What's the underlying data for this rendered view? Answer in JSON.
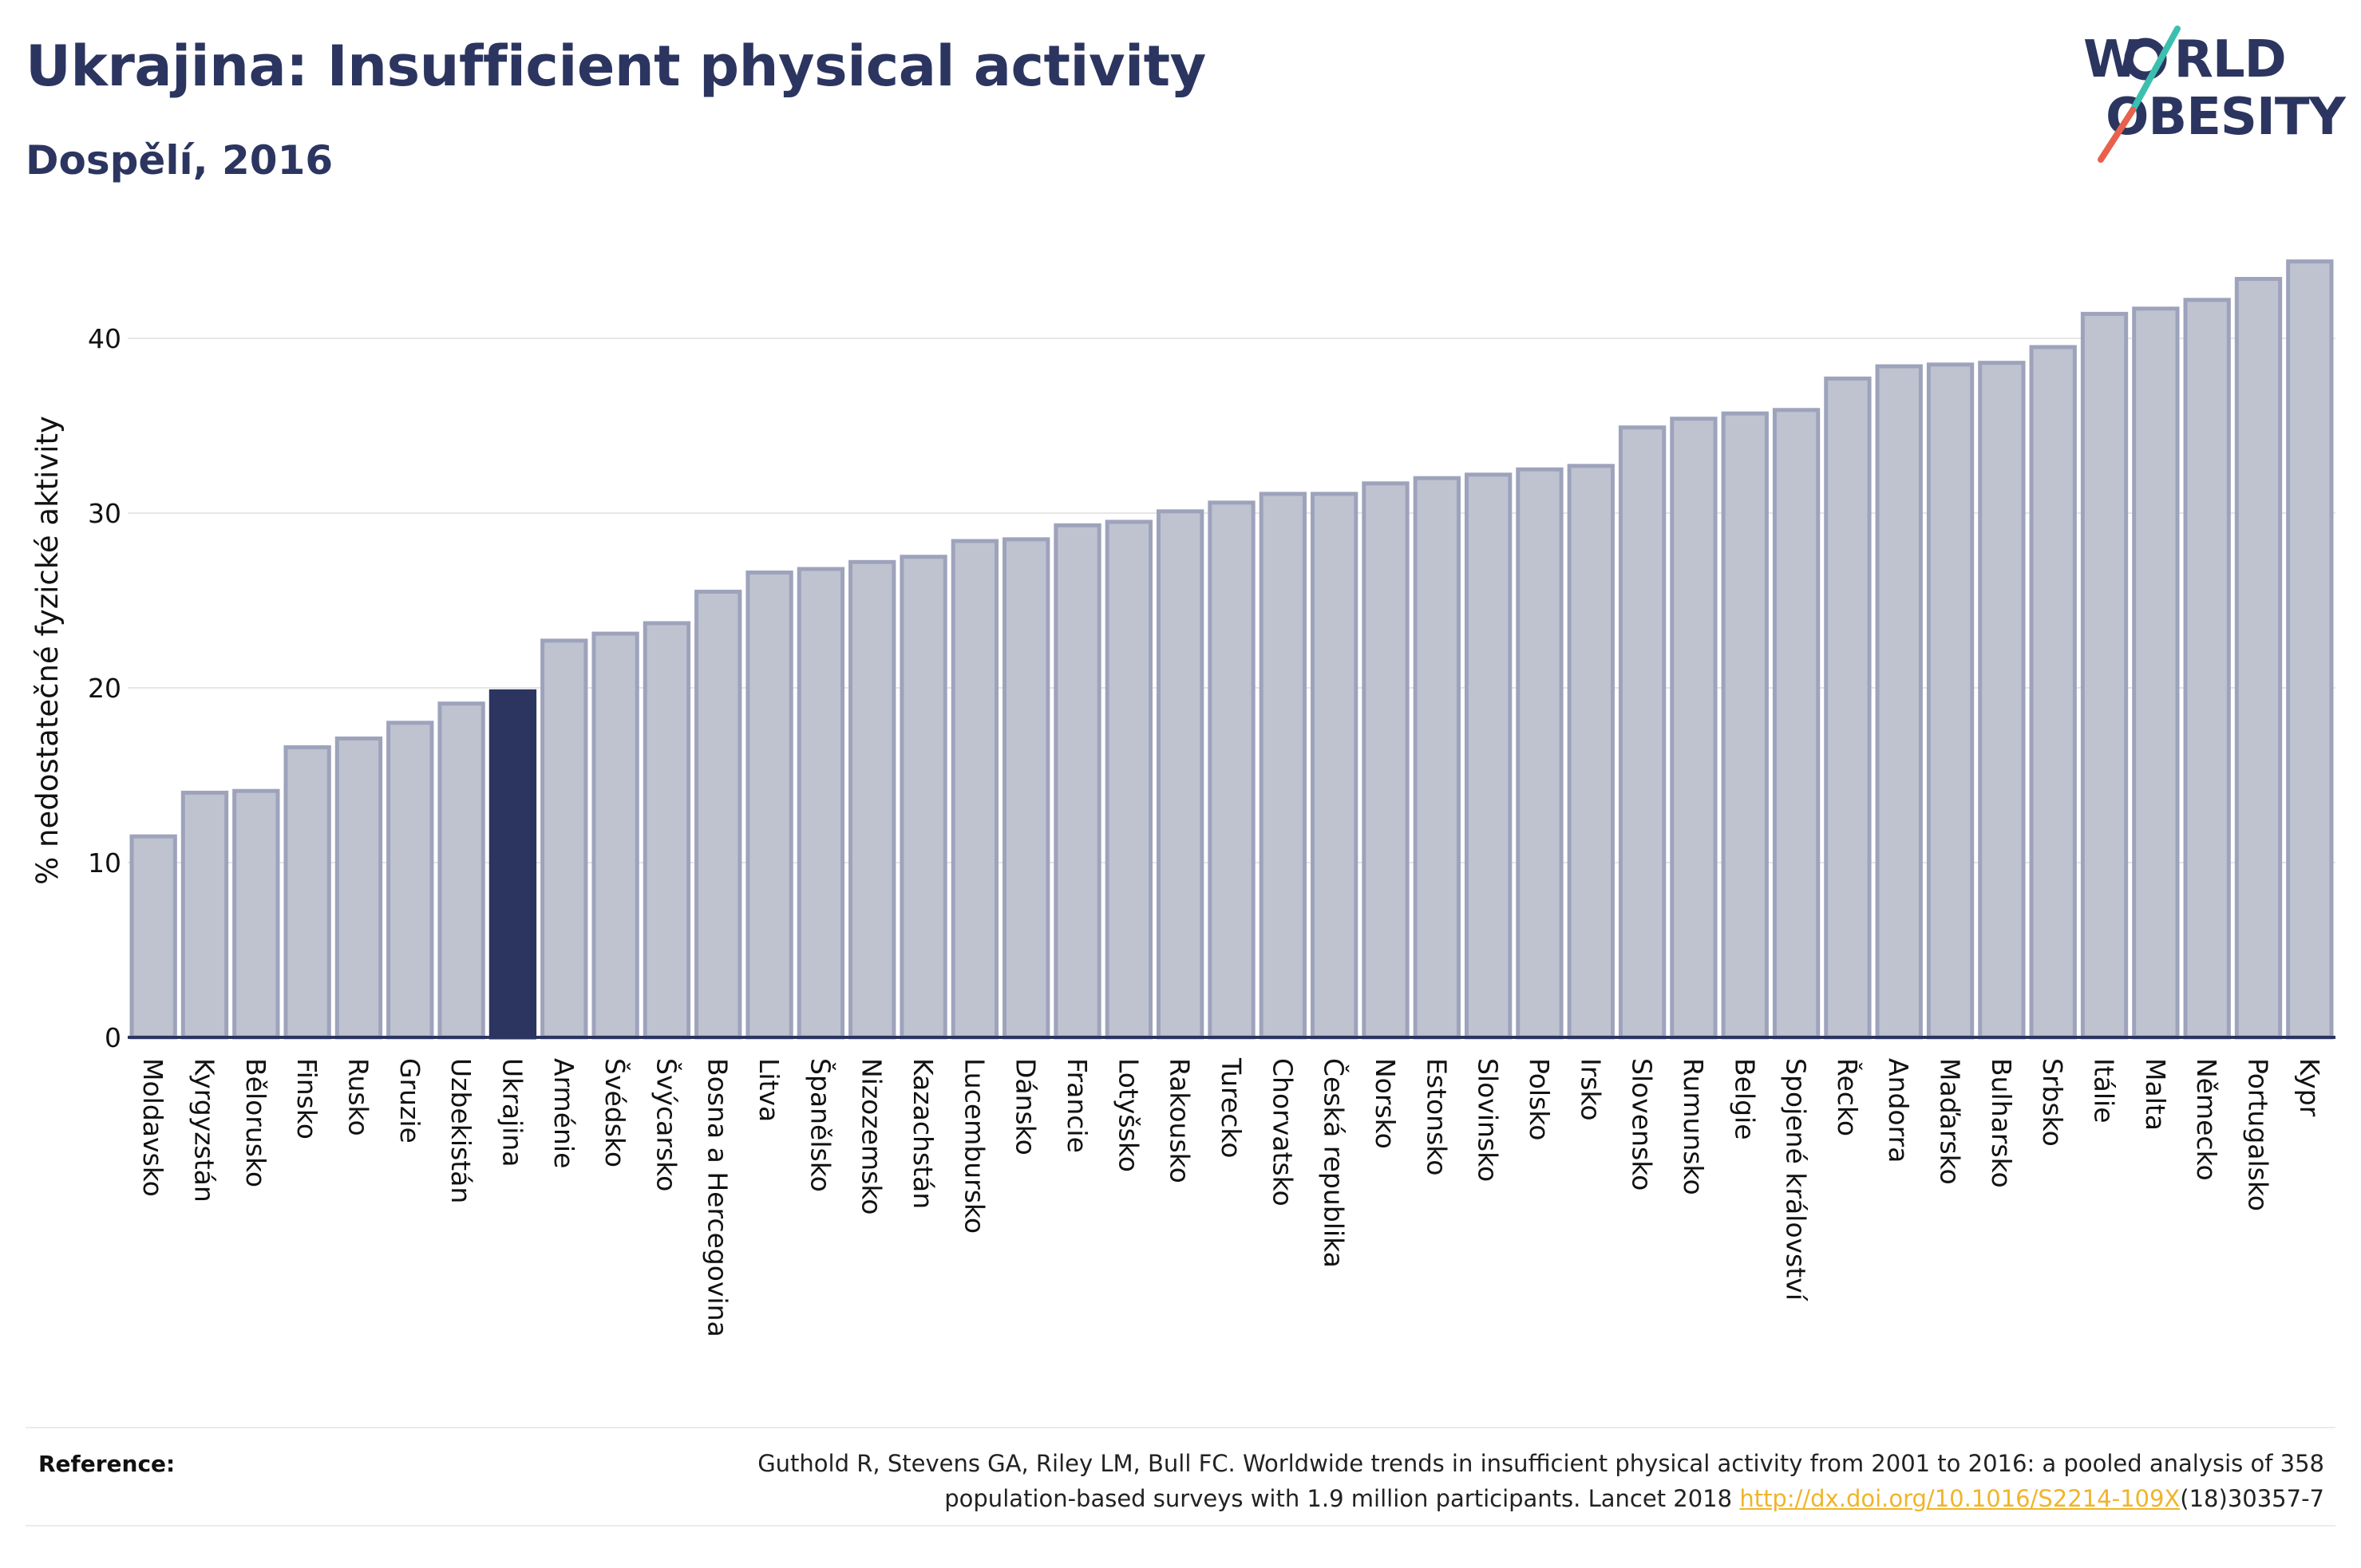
{
  "header": {
    "title": "Ukrajina: Insufficient physical activity",
    "subtitle": "Dospělí, 2016"
  },
  "logo": {
    "line1_a": "W",
    "line1_b": "RLD",
    "line2_a": "O",
    "line2_b": "BESITY"
  },
  "colors": {
    "title": "#2b3560",
    "bar_default": "#bfc3d0",
    "bar_border": "#9ea3bc",
    "bar_highlight": "#2b3560",
    "logo_slash_top": "#3cbfae",
    "logo_slash_bottom": "#e8614d",
    "link": "#f0b429"
  },
  "chart_data": {
    "type": "bar",
    "ylabel": "% nedostatečné fyzické aktivity",
    "xlabel": "",
    "ylim": [
      0,
      46
    ],
    "yticks": [
      0,
      10,
      20,
      30,
      40
    ],
    "grid": true,
    "highlight": "Ukrajina",
    "categories": [
      "Moldavsko",
      "Kyrgyzstán",
      "Bělorusko",
      "Finsko",
      "Rusko",
      "Gruzie",
      "Uzbekistán",
      "Ukrajina",
      "Arménie",
      "Švédsko",
      "Švýcarsko",
      "Bosna a Hercegovina",
      "Litva",
      "Španělsko",
      "Nizozemsko",
      "Kazachstán",
      "Lucembursko",
      "Dánsko",
      "Francie",
      "Lotyšsko",
      "Rakousko",
      "Turecko",
      "Chorvatsko",
      "Česká republika",
      "Norsko",
      "Estonsko",
      "Slovinsko",
      "Polsko",
      "Irsko",
      "Slovensko",
      "Rumunsko",
      "Belgie",
      "Spojené království",
      "Řecko",
      "Andorra",
      "Maďarsko",
      "Bulharsko",
      "Srbsko",
      "Itálie",
      "Malta",
      "Německo",
      "Portugalsko",
      "Kypr"
    ],
    "values": [
      11.5,
      14.0,
      14.1,
      16.6,
      17.1,
      18.0,
      19.1,
      19.8,
      22.7,
      23.1,
      23.7,
      25.5,
      26.6,
      26.8,
      27.2,
      27.5,
      28.4,
      28.5,
      29.3,
      29.5,
      30.1,
      30.6,
      31.1,
      31.1,
      31.7,
      32.0,
      32.2,
      32.5,
      32.7,
      34.9,
      35.4,
      35.7,
      35.9,
      37.7,
      38.4,
      38.5,
      38.6,
      39.5,
      41.4,
      41.7,
      42.2,
      43.4,
      44.4
    ]
  },
  "reference": {
    "label": "Reference:",
    "text_line1": "Guthold R, Stevens GA, Riley LM, Bull FC. Worldwide trends in insufficient physical activity from 2001 to 2016: a pooled analysis of 358",
    "text_line2_pre": "population-based surveys with 1.9 million participants. Lancet 2018 ",
    "link": "http://dx.doi.org/10.1016/S2214-109X",
    "text_line2_post": "(18)30357-7"
  }
}
